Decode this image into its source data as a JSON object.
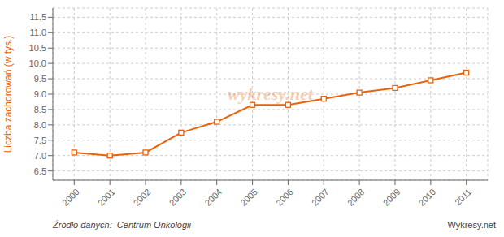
{
  "chart_data": {
    "type": "line",
    "x": [
      2000,
      2001,
      2002,
      2003,
      2004,
      2005,
      2006,
      2007,
      2008,
      2009,
      2010,
      2011
    ],
    "values": [
      7.1,
      7.0,
      7.1,
      7.75,
      8.1,
      8.65,
      8.65,
      8.85,
      9.05,
      9.2,
      9.45,
      9.7
    ],
    "color": "#E8620A",
    "marker": "square",
    "line_style": "solid",
    "ylabel": "Liczba zachorowań (w tys.)",
    "xlim": [
      1999.4,
      2011.6
    ],
    "xticks": [
      2000,
      2001,
      2002,
      2003,
      2004,
      2005,
      2006,
      2007,
      2008,
      2009,
      2010,
      2011
    ],
    "ylim": [
      6.2,
      11.8
    ],
    "yticks": [
      6.5,
      {
        "value": 7,
        "label": "7.0"
      },
      7.5,
      {
        "value": 8,
        "label": "8.0"
      },
      8.5,
      {
        "value": 9,
        "label": "9.0"
      },
      9.5,
      {
        "value": 10,
        "label": "10.0"
      },
      10.5,
      {
        "value": 11,
        "label": "11.0"
      },
      11.5
    ],
    "grid": true,
    "annotations": [
      "wykresy.net",
      "Źródło danych:  Centrum Onkologii",
      "Wykresy.net"
    ]
  }
}
